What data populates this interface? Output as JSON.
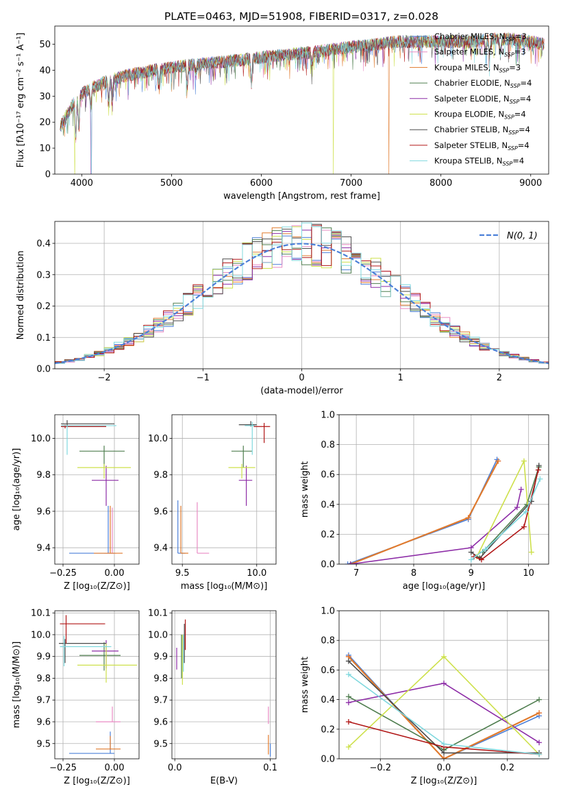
{
  "figure_title": "PLATE=0463, MJD=51908, FIBERID=0317, z=0.028",
  "legend_suffixes": [
    "MILES, N",
    "SSP",
    "=3",
    "ELODIE, N",
    "=4",
    "STELIB, N"
  ],
  "series_styles": [
    {
      "name": "Chabrier MILES",
      "nssp": "3",
      "color": "#4a7fd8"
    },
    {
      "name": "Salpeter MILES",
      "nssp": "3",
      "color": "#e98ac3"
    },
    {
      "name": "Kroupa MILES",
      "nssp": "3",
      "color": "#e07a2c"
    },
    {
      "name": "Chabrier ELODIE",
      "nssp": "4",
      "color": "#4e7d4e"
    },
    {
      "name": "Salpeter ELODIE",
      "nssp": "4",
      "color": "#8c2ba6"
    },
    {
      "name": "Kroupa ELODIE",
      "nssp": "4",
      "color": "#cde04a"
    },
    {
      "name": "Chabrier STELIB",
      "nssp": "4",
      "color": "#4a4a4a"
    },
    {
      "name": "Salpeter STELIB",
      "nssp": "4",
      "color": "#b01515"
    },
    {
      "name": "Kroupa STELIB",
      "nssp": "4",
      "color": "#7fd8de"
    }
  ],
  "chart_data": [
    {
      "id": "spectrum",
      "type": "line",
      "title": "PLATE=0463, MJD=51908, FIBERID=0317, z=0.028",
      "xlabel": "wavelength [Angstrom, rest frame]",
      "ylabel": "Flux [fλ10⁻¹⁷ erg cm⁻² s⁻¹ A⁻¹]",
      "xlim": [
        3700,
        9200
      ],
      "ylim": [
        0,
        57
      ],
      "xticks": [
        4000,
        5000,
        6000,
        7000,
        8000,
        9000
      ],
      "yticks": [
        0,
        10,
        20,
        30,
        40,
        50
      ],
      "grid": false,
      "legend": "upper-right",
      "continuum": {
        "x": [
          3760,
          3900,
          4000,
          4100,
          4300,
          4500,
          4800,
          5000,
          5200,
          5500,
          5800,
          6000,
          6300,
          6600,
          7000,
          7300,
          7500,
          7800,
          8000,
          8300,
          8600,
          8800,
          9000,
          9150
        ],
        "y": [
          18,
          27,
          31,
          33,
          36,
          38,
          40,
          41,
          42,
          43,
          44,
          45,
          46,
          47,
          49,
          50,
          51,
          51,
          51,
          51,
          52,
          52,
          51,
          50
        ]
      },
      "absorption_lines": [
        {
          "x": 3934,
          "depth": 14
        },
        {
          "x": 3968,
          "depth": 12
        },
        {
          "x": 4102,
          "depth": 8
        },
        {
          "x": 4300,
          "depth": 8
        },
        {
          "x": 4340,
          "depth": 6
        },
        {
          "x": 4861,
          "depth": 6
        },
        {
          "x": 5175,
          "depth": 8
        },
        {
          "x": 5270,
          "depth": 4
        },
        {
          "x": 5890,
          "depth": 10
        },
        {
          "x": 6563,
          "depth": 5
        },
        {
          "x": 8498,
          "depth": 5
        },
        {
          "x": 8542,
          "depth": 7
        },
        {
          "x": 8662,
          "depth": 6
        }
      ],
      "dropouts": [
        {
          "x": 3920,
          "series": "Kroupa ELODIE"
        },
        {
          "x": 4105,
          "series": "Salpeter ELODIE"
        },
        {
          "x": 4108,
          "series": "Kroupa STELIB"
        },
        {
          "x": 6800,
          "series": "Kroupa ELODIE"
        },
        {
          "x": 7420,
          "series": "Kroupa MILES"
        }
      ]
    },
    {
      "id": "residuals",
      "type": "histogram",
      "xlabel": "(data-model)/error",
      "ylabel": "Normed distribution",
      "xlim": [
        -2.5,
        2.5
      ],
      "ylim": [
        0,
        0.47
      ],
      "xticks": [
        -2,
        -1,
        0,
        1,
        2
      ],
      "yticks": [
        0.0,
        0.1,
        0.2,
        0.3,
        0.4
      ],
      "grid": true,
      "legend": "upper-right",
      "reference_label": "N(0, 1)",
      "reference_color": "#4a7fd8",
      "bin_width": 0.1,
      "bin_start": -2.6
    },
    {
      "id": "age-vs-Z",
      "type": "errorbar",
      "xlabel": "Z [log₁₀(Z/Z⊙)]",
      "ylabel": "age  [log₁₀(age/yr)]",
      "xlim": [
        -0.29,
        0.12
      ],
      "ylim": [
        9.31,
        10.13
      ],
      "xticks": [
        -0.25,
        0.0
      ],
      "xtick_labels": [
        "−0.25",
        "0.00"
      ],
      "yticks": [
        9.4,
        9.6,
        9.8,
        10.0
      ],
      "grid": true,
      "points": [
        {
          "series": "Chabrier MILES",
          "x": -0.03,
          "y": 9.37,
          "xerr": [
            0.19,
            0.03
          ],
          "yerr": [
            0.0,
            0.26
          ]
        },
        {
          "series": "Salpeter MILES",
          "x": -0.01,
          "y": 9.37,
          "xerr": [
            0.04,
            0.02
          ],
          "yerr": [
            0.0,
            0.25
          ]
        },
        {
          "series": "Kroupa MILES",
          "x": -0.02,
          "y": 9.37,
          "xerr": [
            0.08,
            0.06
          ],
          "yerr": [
            0.0,
            0.26
          ]
        },
        {
          "series": "Chabrier ELODIE",
          "x": -0.05,
          "y": 9.93,
          "xerr": [
            0.12,
            0.1
          ],
          "yerr": [
            0.09,
            0.03
          ]
        },
        {
          "series": "Salpeter ELODIE",
          "x": -0.04,
          "y": 9.77,
          "xerr": [
            0.07,
            0.06
          ],
          "yerr": [
            0.14,
            0.08
          ]
        },
        {
          "series": "Kroupa ELODIE",
          "x": -0.05,
          "y": 9.84,
          "xerr": [
            0.13,
            0.13
          ],
          "yerr": [
            0.06,
            0.02
          ]
        },
        {
          "series": "Chabrier STELIB",
          "x": -0.23,
          "y": 10.08,
          "xerr": [
            0.03,
            0.23
          ],
          "yerr": [
            0.01,
            0.02
          ]
        },
        {
          "series": "Salpeter STELIB",
          "x": -0.24,
          "y": 10.065,
          "xerr": [
            0.02,
            0.2
          ],
          "yerr": [
            0.01,
            0.01
          ]
        },
        {
          "series": "Kroupa STELIB",
          "x": -0.23,
          "y": 10.07,
          "xerr": [
            0.03,
            0.24
          ],
          "yerr": [
            0.16,
            0.0
          ]
        }
      ]
    },
    {
      "id": "age-vs-mass",
      "type": "errorbar",
      "xlabel": "mass [log₁₀(M/M⊙)]",
      "ylabel": "",
      "xlim": [
        9.43,
        10.13
      ],
      "ylim": [
        9.31,
        10.13
      ],
      "xticks": [
        9.5,
        10.0
      ],
      "xtick_labels": [
        "9.5",
        "10.0"
      ],
      "yticks": [
        9.4,
        9.6,
        9.8,
        10.0
      ],
      "grid": true,
      "points": [
        {
          "series": "Chabrier MILES",
          "x": 9.47,
          "y": 9.37,
          "xerr": [
            0.0,
            0.05
          ],
          "yerr": [
            0.0,
            0.29
          ]
        },
        {
          "series": "Salpeter MILES",
          "x": 9.6,
          "y": 9.37,
          "xerr": [
            0.0,
            0.08
          ],
          "yerr": [
            0.0,
            0.28
          ]
        },
        {
          "series": "Kroupa MILES",
          "x": 9.49,
          "y": 9.37,
          "xerr": [
            0.0,
            0.05
          ],
          "yerr": [
            0.0,
            0.26
          ]
        },
        {
          "series": "Chabrier ELODIE",
          "x": 9.91,
          "y": 9.93,
          "xerr": [
            0.08,
            0.06
          ],
          "yerr": [
            0.09,
            0.03
          ]
        },
        {
          "series": "Salpeter ELODIE",
          "x": 9.93,
          "y": 9.77,
          "xerr": [
            0.05,
            0.04
          ],
          "yerr": [
            0.14,
            0.08
          ]
        },
        {
          "series": "Kroupa ELODIE",
          "x": 9.9,
          "y": 9.84,
          "xerr": [
            0.09,
            0.09
          ],
          "yerr": [
            0.06,
            0.02
          ]
        },
        {
          "series": "Chabrier STELIB",
          "x": 9.96,
          "y": 10.075,
          "xerr": [
            0.08,
            0.04
          ],
          "yerr": [
            0.01,
            0.02
          ]
        },
        {
          "series": "Salpeter STELIB",
          "x": 10.05,
          "y": 10.065,
          "xerr": [
            0.07,
            0.04
          ],
          "yerr": [
            0.09,
            0.02
          ]
        },
        {
          "series": "Kroupa STELIB",
          "x": 9.97,
          "y": 10.07,
          "xerr": [
            0.05,
            0.02
          ],
          "yerr": [
            0.16,
            0.02
          ]
        }
      ]
    },
    {
      "id": "weight-vs-age",
      "type": "line",
      "xlabel": "age  [log₁₀(age/yr)]",
      "ylabel": "mass weight",
      "xlim": [
        6.7,
        10.35
      ],
      "ylim": [
        0,
        1.0
      ],
      "xticks": [
        7,
        8,
        9,
        10
      ],
      "yticks": [
        0.0,
        0.2,
        0.4,
        0.6,
        0.8,
        1.0
      ],
      "grid": true,
      "series": [
        {
          "name": "Chabrier MILES",
          "x": [
            6.85,
            8.95,
            9.45
          ],
          "y": [
            0.0,
            0.3,
            0.7
          ]
        },
        {
          "name": "Salpeter MILES",
          "x": [
            6.9,
            8.95,
            9.47
          ],
          "y": [
            0.0,
            0.31,
            0.69
          ]
        },
        {
          "name": "Kroupa MILES",
          "x": [
            6.9,
            8.95,
            9.47
          ],
          "y": [
            0.0,
            0.31,
            0.69
          ]
        },
        {
          "name": "Chabrier ELODIE",
          "x": [
            9.2,
            9.97,
            10.18
          ],
          "y": [
            0.08,
            0.4,
            0.65
          ]
        },
        {
          "name": "Salpeter ELODIE",
          "x": [
            6.9,
            9.0,
            9.8,
            9.87
          ],
          "y": [
            0.0,
            0.11,
            0.38,
            0.5
          ]
        },
        {
          "name": "Kroupa ELODIE",
          "x": [
            9.1,
            9.92,
            10.05
          ],
          "y": [
            0.05,
            0.69,
            0.08
          ]
        },
        {
          "name": "Chabrier STELIB",
          "x": [
            9.0,
            9.15,
            10.05,
            10.18
          ],
          "y": [
            0.08,
            0.04,
            0.42,
            0.66
          ]
        },
        {
          "name": "Salpeter STELIB",
          "x": [
            9.05,
            9.18,
            9.92,
            10.17
          ],
          "y": [
            0.05,
            0.03,
            0.25,
            0.63
          ]
        },
        {
          "name": "Kroupa STELIB",
          "x": [
            9.0,
            9.25,
            9.95,
            10.2
          ],
          "y": [
            0.03,
            0.1,
            0.35,
            0.57
          ]
        }
      ]
    },
    {
      "id": "mass-vs-Z",
      "type": "errorbar",
      "xlabel": "Z [log₁₀(Z/Z⊙)]",
      "ylabel": "mass [log₁₀(M/M⊙)]",
      "xlim": [
        -0.29,
        0.12
      ],
      "ylim": [
        9.43,
        10.11
      ],
      "xticks": [
        -0.25,
        0.0
      ],
      "xtick_labels": [
        "−0.25",
        "0.00"
      ],
      "yticks": [
        9.5,
        9.6,
        9.7,
        9.8,
        9.9,
        10.0,
        10.1
      ],
      "grid": true,
      "points": [
        {
          "series": "Chabrier MILES",
          "x": -0.02,
          "y": 9.455,
          "xerr": [
            0.2,
            0.02
          ],
          "yerr": [
            0.0,
            0.1
          ]
        },
        {
          "series": "Salpeter MILES",
          "x": -0.01,
          "y": 9.6,
          "xerr": [
            0.08,
            0.04
          ],
          "yerr": [
            0.0,
            0.07
          ]
        },
        {
          "series": "Kroupa MILES",
          "x": -0.02,
          "y": 9.475,
          "xerr": [
            0.07,
            0.05
          ],
          "yerr": [
            0.0,
            0.06
          ]
        },
        {
          "series": "Chabrier ELODIE",
          "x": -0.05,
          "y": 9.905,
          "xerr": [
            0.12,
            0.08
          ],
          "yerr": [
            0.07,
            0.06
          ]
        },
        {
          "series": "Salpeter ELODIE",
          "x": -0.04,
          "y": 9.925,
          "xerr": [
            0.07,
            0.06
          ],
          "yerr": [
            0.08,
            0.05
          ]
        },
        {
          "series": "Kroupa ELODIE",
          "x": -0.04,
          "y": 9.86,
          "xerr": [
            0.14,
            0.15
          ],
          "yerr": [
            0.08,
            0.1
          ]
        },
        {
          "series": "Chabrier STELIB",
          "x": -0.24,
          "y": 9.96,
          "xerr": [
            0.03,
            0.2
          ],
          "yerr": [
            0.09,
            0.02
          ]
        },
        {
          "series": "Salpeter STELIB",
          "x": -0.235,
          "y": 10.05,
          "xerr": [
            0.03,
            0.19
          ],
          "yerr": [
            0.09,
            0.04
          ]
        },
        {
          "series": "Kroupa STELIB",
          "x": -0.245,
          "y": 9.945,
          "xerr": [
            0.02,
            0.23
          ],
          "yerr": [
            0.09,
            0.05
          ]
        }
      ]
    },
    {
      "id": "mass-vs-EBV",
      "type": "errorbar",
      "xlabel": "E(B-V)",
      "ylabel": "",
      "xlim": [
        -0.003,
        0.106
      ],
      "ylim": [
        9.43,
        10.11
      ],
      "xticks": [
        0.0,
        0.1
      ],
      "xtick_labels": [
        "0.0",
        "0.1"
      ],
      "yticks": [
        9.5,
        9.6,
        9.7,
        9.8,
        9.9,
        10.0,
        10.1
      ],
      "grid": true,
      "points": [
        {
          "series": "Chabrier MILES",
          "x": 0.1,
          "y": 9.5,
          "xerr": [
            0,
            0
          ],
          "yerr": [
            0.06,
            0.0
          ]
        },
        {
          "series": "Salpeter MILES",
          "x": 0.098,
          "y": 9.63,
          "xerr": [
            0,
            0
          ],
          "yerr": [
            0.04,
            0.04
          ]
        },
        {
          "series": "Kroupa MILES",
          "x": 0.098,
          "y": 9.5,
          "xerr": [
            0,
            0
          ],
          "yerr": [
            0.05,
            0.04
          ]
        },
        {
          "series": "Chabrier ELODIE",
          "x": 0.007,
          "y": 9.9,
          "xerr": [
            0,
            0
          ],
          "yerr": [
            0.1,
            0.1
          ]
        },
        {
          "series": "Salpeter ELODIE",
          "x": 0.002,
          "y": 9.9,
          "xerr": [
            0,
            0
          ],
          "yerr": [
            0.06,
            0.04
          ]
        },
        {
          "series": "Kroupa ELODIE",
          "x": 0.008,
          "y": 9.88,
          "xerr": [
            0,
            0
          ],
          "yerr": [
            0.11,
            0.12
          ]
        },
        {
          "series": "Chabrier STELIB",
          "x": 0.01,
          "y": 9.92,
          "xerr": [
            0,
            0
          ],
          "yerr": [
            0.05,
            0.13
          ]
        },
        {
          "series": "Salpeter STELIB",
          "x": 0.011,
          "y": 10.0,
          "xerr": [
            0,
            0
          ],
          "yerr": [
            0.07,
            0.07
          ]
        },
        {
          "series": "Kroupa STELIB",
          "x": 0.009,
          "y": 9.93,
          "xerr": [
            0,
            0
          ],
          "yerr": [
            0.1,
            0.07
          ]
        }
      ]
    },
    {
      "id": "weight-vs-Z",
      "type": "line",
      "xlabel": "Z [log₁₀(Z/Z⊙)]",
      "ylabel": "mass weight",
      "xlim": [
        -0.33,
        0.33
      ],
      "ylim": [
        0,
        1.0
      ],
      "xticks": [
        -0.2,
        0.0,
        0.2
      ],
      "xtick_labels": [
        "−0.2",
        "0.0",
        "0.2"
      ],
      "yticks": [
        0.0,
        0.2,
        0.4,
        0.6,
        0.8,
        1.0
      ],
      "grid": true,
      "series": [
        {
          "name": "Chabrier MILES",
          "x": [
            -0.3,
            0.0,
            0.3
          ],
          "y": [
            0.7,
            0.0,
            0.29
          ]
        },
        {
          "name": "Salpeter MILES",
          "x": [
            -0.3,
            0.0,
            0.3
          ],
          "y": [
            0.69,
            0.0,
            0.31
          ]
        },
        {
          "name": "Kroupa MILES",
          "x": [
            -0.3,
            0.0,
            0.3
          ],
          "y": [
            0.69,
            0.0,
            0.31
          ]
        },
        {
          "name": "Chabrier ELODIE",
          "x": [
            -0.3,
            0.0,
            0.3
          ],
          "y": [
            0.42,
            0.06,
            0.4
          ]
        },
        {
          "name": "Salpeter ELODIE",
          "x": [
            -0.3,
            0.0,
            0.3
          ],
          "y": [
            0.38,
            0.51,
            0.11
          ]
        },
        {
          "name": "Kroupa ELODIE",
          "x": [
            -0.3,
            0.0,
            0.3
          ],
          "y": [
            0.08,
            0.69,
            0.03
          ]
        },
        {
          "name": "Chabrier STELIB",
          "x": [
            -0.3,
            0.0,
            0.3
          ],
          "y": [
            0.66,
            0.04,
            0.04
          ]
        },
        {
          "name": "Salpeter STELIB",
          "x": [
            -0.3,
            0.0,
            0.3
          ],
          "y": [
            0.25,
            0.08,
            0.03
          ]
        },
        {
          "name": "Kroupa STELIB",
          "x": [
            -0.3,
            0.0,
            0.3
          ],
          "y": [
            0.57,
            0.1,
            0.03
          ]
        }
      ]
    }
  ]
}
